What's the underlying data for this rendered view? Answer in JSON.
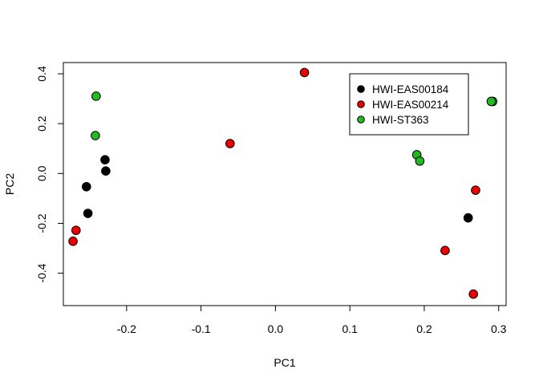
{
  "chart_data": {
    "type": "scatter",
    "title": "",
    "xlabel": "PC1",
    "ylabel": "PC2",
    "xlim": [
      -0.285,
      0.31
    ],
    "ylim": [
      -0.53,
      0.445
    ],
    "x_ticks": [
      -0.2,
      -0.1,
      0.0,
      0.1,
      0.2,
      0.3
    ],
    "x_tick_labels": [
      "-0.2",
      "-0.1",
      "0.0",
      "0.1",
      "0.2",
      "0.3"
    ],
    "y_ticks": [
      -0.4,
      -0.2,
      0.0,
      0.2,
      0.4
    ],
    "y_tick_labels": [
      "-0.4",
      "-0.2",
      "0.0",
      "0.2",
      "0.4"
    ],
    "grid": false,
    "legend_position": "top-right",
    "series": [
      {
        "name": "HWI-EAS00184",
        "color": "#000000",
        "points": [
          {
            "x": -0.229,
            "y": 0.055
          },
          {
            "x": -0.228,
            "y": 0.01
          },
          {
            "x": -0.254,
            "y": -0.053
          },
          {
            "x": -0.252,
            "y": -0.16
          },
          {
            "x": 0.259,
            "y": -0.178
          }
        ]
      },
      {
        "name": "HWI-EAS00214",
        "color": "#ee0000",
        "points": [
          {
            "x": 0.039,
            "y": 0.405
          },
          {
            "x": -0.061,
            "y": 0.12
          },
          {
            "x": -0.268,
            "y": -0.228
          },
          {
            "x": -0.272,
            "y": -0.272
          },
          {
            "x": 0.269,
            "y": -0.067
          },
          {
            "x": 0.228,
            "y": -0.309
          },
          {
            "x": 0.266,
            "y": -0.484
          }
        ]
      },
      {
        "name": "HWI-ST363",
        "color": "#22bb22",
        "points": [
          {
            "x": -0.241,
            "y": 0.31
          },
          {
            "x": -0.242,
            "y": 0.152
          },
          {
            "x": 0.19,
            "y": 0.075
          },
          {
            "x": 0.194,
            "y": 0.05
          },
          {
            "x": 0.292,
            "y": 0.289
          },
          {
            "x": 0.29,
            "y": 0.289
          }
        ]
      }
    ]
  }
}
